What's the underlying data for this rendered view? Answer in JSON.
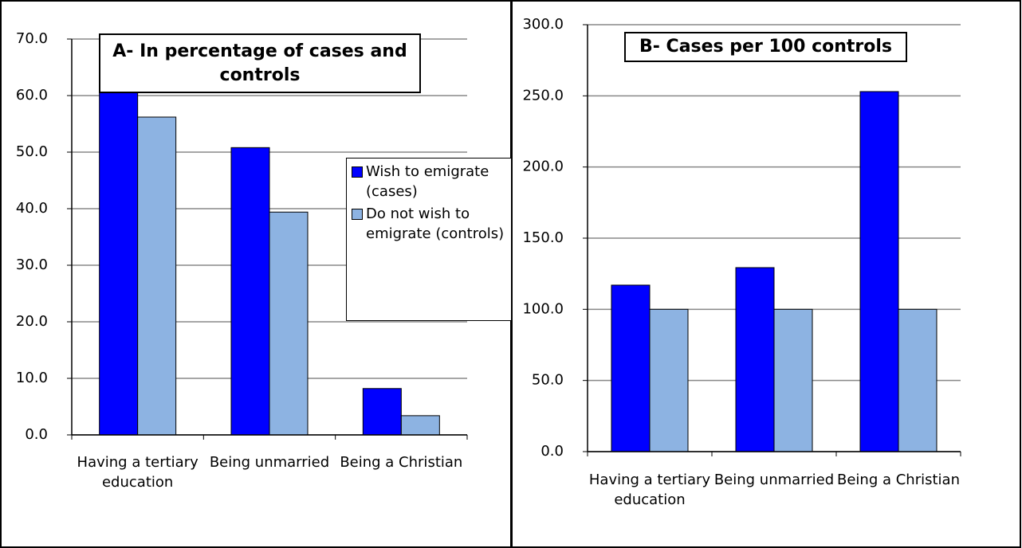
{
  "chart_data": [
    {
      "type": "bar",
      "title": "A- In percentage of cases and controls",
      "categories": [
        "Having a tertiary education",
        "Being unmarried",
        "Being a Christian"
      ],
      "series": [
        {
          "name": "Wish to emigrate (cases)",
          "color": "#0000ff",
          "values": [
            65.4,
            50.8,
            8.2
          ]
        },
        {
          "name": "Do not wish to emigrate (controls)",
          "color": "#8db3e2",
          "values": [
            56.2,
            39.4,
            3.4
          ]
        }
      ],
      "ylim": [
        0,
        70
      ],
      "yticks": [
        {
          "value": 0,
          "label": "0.0"
        },
        {
          "value": 10,
          "label": "10.0"
        },
        {
          "value": 20,
          "label": "20.0"
        },
        {
          "value": 30,
          "label": "30.0"
        },
        {
          "value": 40,
          "label": "40.0"
        },
        {
          "value": 50,
          "label": "50.0"
        },
        {
          "value": 60,
          "label": "60.0"
        },
        {
          "value": 70,
          "label": "70.0"
        }
      ],
      "grid": true,
      "legend": "right"
    },
    {
      "type": "bar",
      "title": "B- Cases per 100 controls",
      "categories": [
        "Having a tertiary education",
        "Being unmarried",
        "Being a Christian"
      ],
      "series": [
        {
          "color": "#0000ff",
          "values": [
            117,
            129.3,
            253
          ]
        },
        {
          "color": "#8db3e2",
          "values": [
            100,
            100,
            100
          ]
        }
      ],
      "ylim": [
        0,
        300
      ],
      "yticks": [
        {
          "value": 0,
          "label": "0.0"
        },
        {
          "value": 50,
          "label": "50.0"
        },
        {
          "value": 100,
          "label": "100.0"
        },
        {
          "value": 150,
          "label": "150.0"
        },
        {
          "value": 200,
          "label": "200.0"
        },
        {
          "value": 250,
          "label": "250.0"
        },
        {
          "value": 300,
          "label": "300.0"
        }
      ],
      "grid": true
    }
  ]
}
